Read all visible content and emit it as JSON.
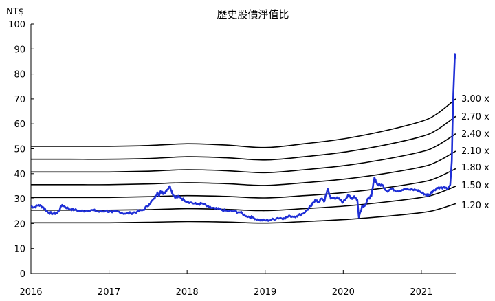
{
  "chart_data": {
    "type": "line",
    "title": "歷史股價淨值比",
    "ylabel": "NT$",
    "xlim": [
      2016.0,
      2021.45
    ],
    "ylim": [
      0,
      100
    ],
    "yticks": [
      0,
      10,
      20,
      30,
      40,
      50,
      60,
      70,
      80,
      90,
      100
    ],
    "xticks": [
      2016,
      2017,
      2018,
      2019,
      2020,
      2021
    ],
    "grid": false,
    "colors": {
      "price": "#1f2fd6",
      "band": "#000000"
    },
    "price": {
      "x": [
        2016.0,
        2016.04,
        2016.1,
        2016.16,
        2016.22,
        2016.28,
        2016.34,
        2016.4,
        2016.48,
        2016.56,
        2016.64,
        2016.72,
        2016.8,
        2016.88,
        2016.96,
        2017.04,
        2017.12,
        2017.2,
        2017.28,
        2017.36,
        2017.44,
        2017.52,
        2017.58,
        2017.62,
        2017.64,
        2017.66,
        2017.7,
        2017.74,
        2017.78,
        2017.82,
        2017.86,
        2017.9,
        2017.96,
        2018.04,
        2018.12,
        2018.2,
        2018.28,
        2018.36,
        2018.44,
        2018.52,
        2018.6,
        2018.68,
        2018.76,
        2018.84,
        2018.92,
        2019.0,
        2019.08,
        2019.16,
        2019.24,
        2019.32,
        2019.4,
        2019.48,
        2019.54,
        2019.6,
        2019.64,
        2019.68,
        2019.72,
        2019.76,
        2019.8,
        2019.84,
        2019.88,
        2019.94,
        2020.0,
        2020.06,
        2020.1,
        2020.14,
        2020.18,
        2020.2,
        2020.24,
        2020.28,
        2020.32,
        2020.36,
        2020.4,
        2020.44,
        2020.5,
        2020.56,
        2020.62,
        2020.7,
        2020.78,
        2020.86,
        2020.94,
        2021.0,
        2021.06,
        2021.1,
        2021.16,
        2021.22,
        2021.28,
        2021.34,
        2021.37,
        2021.39,
        2021.4,
        2021.41,
        2021.42,
        2021.43,
        2021.44
      ],
      "values": [
        27.0,
        26.5,
        27.5,
        26.5,
        24.5,
        24.0,
        24.3,
        27.5,
        26.0,
        25.5,
        25.0,
        25.3,
        25.3,
        24.7,
        25.2,
        24.5,
        24.8,
        24.0,
        24.2,
        24.8,
        25.5,
        28.0,
        30.0,
        32.5,
        31.0,
        33.0,
        32.0,
        33.5,
        35.0,
        31.5,
        30.5,
        30.8,
        29.5,
        28.5,
        27.8,
        28.0,
        26.5,
        26.0,
        25.5,
        25.0,
        25.0,
        24.5,
        23.0,
        22.5,
        21.5,
        21.3,
        21.5,
        22.3,
        22.2,
        23.0,
        23.0,
        24.0,
        25.5,
        27.5,
        29.5,
        28.5,
        30.0,
        29.0,
        34.0,
        30.0,
        30.5,
        30.0,
        28.5,
        31.5,
        30.0,
        31.0,
        29.5,
        22.5,
        27.0,
        27.5,
        30.0,
        31.0,
        38.5,
        35.5,
        35.5,
        33.0,
        34.0,
        33.0,
        34.0,
        33.5,
        33.5,
        32.5,
        31.5,
        31.5,
        33.5,
        34.5,
        34.5,
        34.0,
        35.5,
        45.0,
        60.0,
        72.0,
        80.0,
        88.0,
        86.0
      ]
    },
    "bands": [
      {
        "label": "3.00 x",
        "x": [
          2016.0,
          2016.5,
          2017.0,
          2017.5,
          2018.0,
          2018.5,
          2019.0,
          2019.5,
          2020.0,
          2020.5,
          2021.0,
          2021.2,
          2021.44
        ],
        "values": [
          51.0,
          51.0,
          51.0,
          51.3,
          52.0,
          51.5,
          50.5,
          52.0,
          54.0,
          57.0,
          61.0,
          64.0,
          70.0
        ]
      },
      {
        "label": "2.70 x",
        "x": [
          2016.0,
          2016.5,
          2017.0,
          2017.5,
          2018.0,
          2018.5,
          2019.0,
          2019.5,
          2020.0,
          2020.5,
          2021.0,
          2021.2,
          2021.44
        ],
        "values": [
          45.8,
          45.8,
          45.8,
          46.1,
          46.8,
          46.4,
          45.5,
          46.8,
          48.6,
          51.3,
          54.9,
          57.6,
          63.0
        ]
      },
      {
        "label": "2.40 x",
        "x": [
          2016.0,
          2016.5,
          2017.0,
          2017.5,
          2018.0,
          2018.5,
          2019.0,
          2019.5,
          2020.0,
          2020.5,
          2021.0,
          2021.2,
          2021.44
        ],
        "values": [
          40.7,
          40.7,
          40.7,
          41.0,
          41.6,
          41.2,
          40.4,
          41.6,
          43.2,
          45.6,
          48.8,
          51.2,
          56.0
        ]
      },
      {
        "label": "2.10 x",
        "x": [
          2016.0,
          2016.5,
          2017.0,
          2017.5,
          2018.0,
          2018.5,
          2019.0,
          2019.5,
          2020.0,
          2020.5,
          2021.0,
          2021.2,
          2021.44
        ],
        "values": [
          35.6,
          35.6,
          35.6,
          35.9,
          36.4,
          36.0,
          35.3,
          36.4,
          37.8,
          39.9,
          42.7,
          44.8,
          49.0
        ]
      },
      {
        "label": "1.80 x",
        "x": [
          2016.0,
          2016.5,
          2017.0,
          2017.5,
          2018.0,
          2018.5,
          2019.0,
          2019.5,
          2020.0,
          2020.5,
          2021.0,
          2021.2,
          2021.44
        ],
        "values": [
          30.5,
          30.5,
          30.5,
          30.8,
          31.2,
          30.9,
          30.3,
          31.2,
          32.4,
          34.2,
          36.6,
          38.4,
          42.0
        ]
      },
      {
        "label": "1.50 x",
        "x": [
          2016.0,
          2016.5,
          2017.0,
          2017.5,
          2018.0,
          2018.5,
          2019.0,
          2019.5,
          2020.0,
          2020.5,
          2021.0,
          2021.2,
          2021.44
        ],
        "values": [
          25.4,
          25.4,
          25.4,
          25.6,
          26.0,
          25.7,
          25.2,
          26.0,
          27.0,
          28.5,
          30.5,
          32.0,
          35.0
        ]
      },
      {
        "label": "1.20 x",
        "x": [
          2016.0,
          2016.5,
          2017.0,
          2017.5,
          2018.0,
          2018.5,
          2019.0,
          2019.5,
          2020.0,
          2020.5,
          2021.0,
          2021.2,
          2021.44
        ],
        "values": [
          20.3,
          20.3,
          20.3,
          20.5,
          20.8,
          20.6,
          20.2,
          20.8,
          21.6,
          22.8,
          24.4,
          25.6,
          28.0
        ]
      }
    ]
  }
}
